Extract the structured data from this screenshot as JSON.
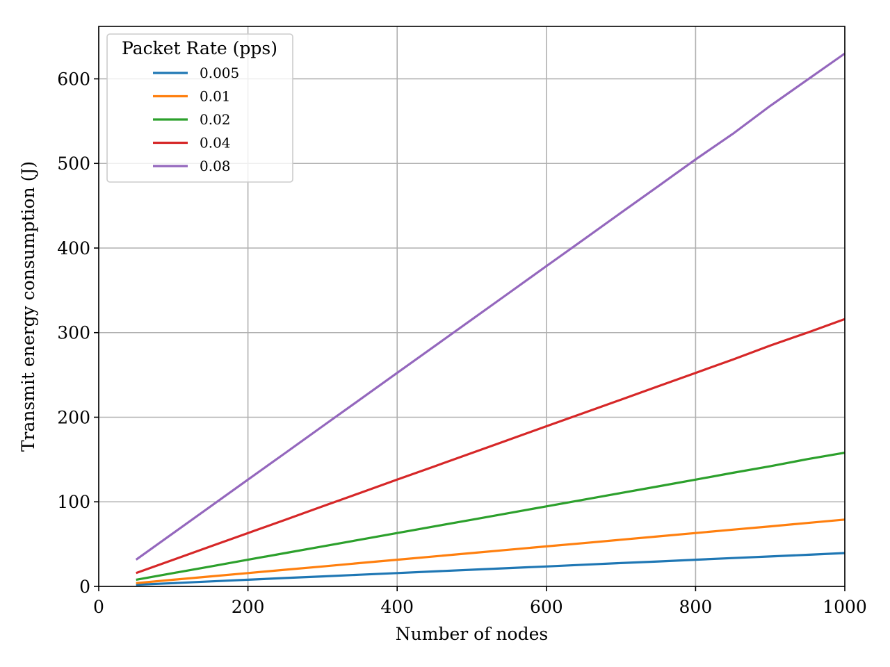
{
  "chart_data": {
    "type": "line",
    "title": "",
    "xlabel": "Number of nodes",
    "ylabel": "Transmit energy consumption (J)",
    "xlim": [
      0,
      1000
    ],
    "ylim": [
      0,
      662
    ],
    "xticks": [
      0,
      200,
      400,
      600,
      800,
      1000
    ],
    "yticks": [
      0,
      100,
      200,
      300,
      400,
      500,
      600
    ],
    "grid": true,
    "legend": {
      "title": "Packet Rate (pps)",
      "position": "upper-left"
    },
    "x": [
      50,
      100,
      150,
      200,
      250,
      300,
      350,
      400,
      450,
      500,
      550,
      600,
      650,
      700,
      750,
      800,
      850,
      900,
      950,
      1000
    ],
    "series": [
      {
        "name": "0.005",
        "color": "#1f77b4",
        "values": [
          2.0,
          3.9,
          5.9,
          7.9,
          9.9,
          11.8,
          13.8,
          15.8,
          17.7,
          19.7,
          21.7,
          23.6,
          25.6,
          27.6,
          29.5,
          31.5,
          33.5,
          35.4,
          37.4,
          39.4
        ]
      },
      {
        "name": "0.01",
        "color": "#ff7f0e",
        "values": [
          3.9,
          7.9,
          11.8,
          15.8,
          19.7,
          23.6,
          27.6,
          31.5,
          35.5,
          39.4,
          43.4,
          47.3,
          51.2,
          55.2,
          59.1,
          63.1,
          67.1,
          71.0,
          75.0,
          79.0
        ]
      },
      {
        "name": "0.02",
        "color": "#2ca02c",
        "values": [
          7.9,
          15.8,
          23.6,
          31.5,
          39.4,
          47.3,
          55.2,
          63.1,
          71.0,
          78.8,
          86.7,
          94.6,
          102.5,
          110.4,
          118.3,
          126.2,
          134.3,
          142.0,
          150.5,
          158.0
        ]
      },
      {
        "name": "0.04",
        "color": "#d62728",
        "values": [
          15.8,
          31.5,
          47.3,
          63.1,
          78.8,
          94.6,
          110.4,
          126.2,
          141.9,
          157.7,
          173.5,
          189.3,
          205.0,
          220.8,
          236.6,
          252.4,
          268.2,
          284.7,
          300.0,
          316.0
        ]
      },
      {
        "name": "0.08",
        "color": "#9467bd",
        "values": [
          31.5,
          63.1,
          94.6,
          126.2,
          157.7,
          189.3,
          220.8,
          252.4,
          283.9,
          315.5,
          347.0,
          378.6,
          410.1,
          441.7,
          473.2,
          504.8,
          535.0,
          568.0,
          599.0,
          630.0
        ]
      }
    ]
  }
}
